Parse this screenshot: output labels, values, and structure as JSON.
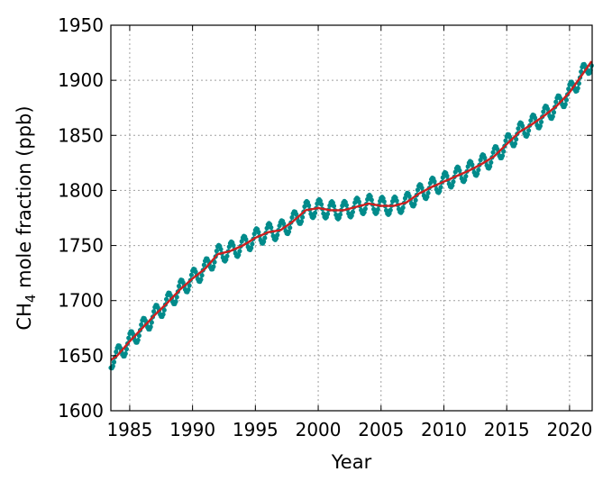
{
  "chart_data": {
    "type": "line",
    "title": "",
    "xlabel": "Year",
    "ylabel_main": "CH",
    "ylabel_sub": "4",
    "ylabel_rest": " mole fraction (ppb)",
    "xlim": [
      1983.5,
      2021.8
    ],
    "ylim": [
      1600,
      1950
    ],
    "x_ticks": [
      1985,
      1990,
      1995,
      2000,
      2005,
      2010,
      2015,
      2020
    ],
    "x_tick_labels": [
      "1985",
      "1990",
      "1995",
      "2000",
      "2005",
      "2010",
      "2015",
      "2020"
    ],
    "y_ticks": [
      1600,
      1650,
      1700,
      1750,
      1800,
      1850,
      1900,
      1950
    ],
    "y_tick_labels": [
      "1600",
      "1650",
      "1700",
      "1750",
      "1800",
      "1850",
      "1900",
      "1950"
    ],
    "grid": true,
    "legend": "none",
    "series": [
      {
        "role": "monthly-mean",
        "style": "markers-and-line",
        "color": "#008b8b",
        "seasonal_amplitude_ppb": 8,
        "x": [
          1983.5,
          1984,
          1985,
          1986,
          1987,
          1988,
          1989,
          1990,
          1991,
          1992,
          1993,
          1994,
          1995,
          1996,
          1997,
          1998,
          1999,
          2000,
          2001,
          2002,
          2003,
          2004,
          2005,
          2006,
          2007,
          2008,
          2009,
          2010,
          2011,
          2012,
          2013,
          2014,
          2015,
          2016,
          2017,
          2018,
          2019,
          2020,
          2021,
          2021.8
        ],
        "trend": [
          1646,
          1650,
          1663,
          1675,
          1687,
          1698,
          1710,
          1720,
          1729,
          1742,
          1745,
          1750,
          1757,
          1762,
          1764,
          1772,
          1782,
          1784,
          1782,
          1782,
          1785,
          1788,
          1786,
          1786,
          1789,
          1797,
          1803,
          1808,
          1813,
          1818,
          1824,
          1831,
          1842,
          1853,
          1860,
          1868,
          1877,
          1889,
          1905,
          1918
        ]
      },
      {
        "role": "deseasonalized-trend",
        "style": "line",
        "color": "#cc1f1f",
        "x": [
          1983.5,
          1984,
          1985,
          1986,
          1987,
          1988,
          1989,
          1990,
          1991,
          1992,
          1993,
          1994,
          1995,
          1996,
          1997,
          1998,
          1999,
          2000,
          2001,
          2002,
          2003,
          2004,
          2005,
          2006,
          2007,
          2008,
          2009,
          2010,
          2011,
          2012,
          2013,
          2014,
          2015,
          2016,
          2017,
          2018,
          2019,
          2020,
          2021,
          2021.8
        ],
        "y": [
          1646,
          1650,
          1663,
          1675,
          1687,
          1698,
          1710,
          1720,
          1729,
          1742,
          1745,
          1750,
          1757,
          1762,
          1764,
          1772,
          1782,
          1784,
          1782,
          1782,
          1785,
          1788,
          1786,
          1786,
          1789,
          1797,
          1803,
          1808,
          1813,
          1818,
          1824,
          1831,
          1842,
          1853,
          1860,
          1868,
          1877,
          1889,
          1905,
          1918
        ]
      }
    ]
  }
}
